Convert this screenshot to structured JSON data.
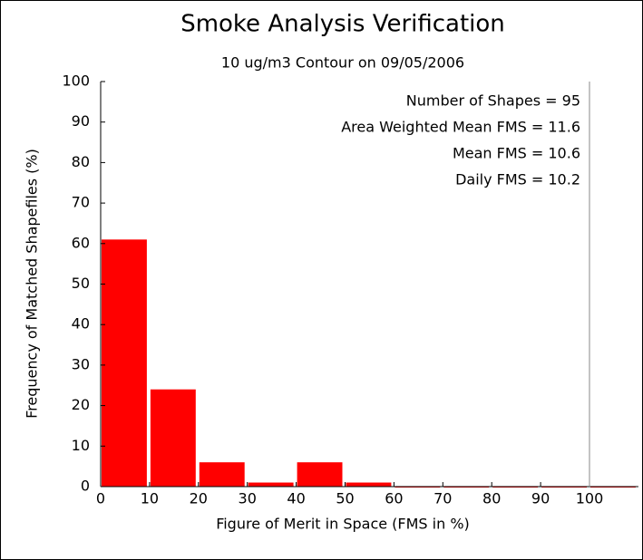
{
  "chart_data": {
    "type": "histogram",
    "title": "Smoke Analysis Verification",
    "subtitle": "10 ug/m3 Contour on 09/05/2006",
    "xlabel": "Figure of Merit in Space (FMS in %)",
    "ylabel": "Frequency of Matched Shapefiles (%)",
    "bins": [
      0,
      10,
      20,
      30,
      40,
      50,
      60,
      70,
      80,
      90,
      100,
      110
    ],
    "values": [
      61,
      24,
      6,
      1,
      6,
      1,
      0,
      0,
      0,
      0,
      0
    ],
    "color": "#ff0000",
    "xlim": [
      0,
      110
    ],
    "xticks": [
      0,
      10,
      20,
      30,
      40,
      50,
      60,
      70,
      80,
      90,
      100
    ],
    "ylim": [
      0,
      100
    ],
    "yticks": [
      0,
      10,
      20,
      30,
      40,
      50,
      60,
      70,
      80,
      90,
      100
    ],
    "annotations": [
      "Number of Shapes = 95",
      "Area Weighted Mean FMS = 11.6",
      "Mean FMS = 10.6",
      "Daily FMS = 10.2"
    ]
  }
}
